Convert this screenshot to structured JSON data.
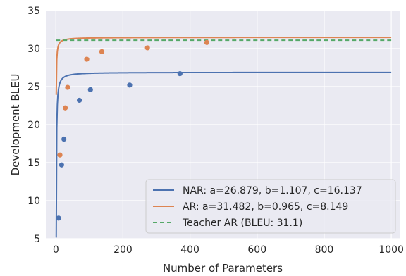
{
  "chart_data": {
    "type": "scatter",
    "xlabel": "Number of Parameters",
    "ylabel": "Development BLEU",
    "xlim": [
      -30,
      1025
    ],
    "ylim": [
      5,
      35
    ],
    "x_ticks": [
      0,
      200,
      400,
      600,
      800,
      1000
    ],
    "y_ticks": [
      5,
      10,
      15,
      20,
      25,
      30,
      35
    ],
    "grid": true,
    "legend_position": "bottom-right",
    "colors": {
      "background": "#eaeaf2",
      "grid": "#ffffff",
      "nar": "#4c72b0",
      "ar": "#dd8452",
      "teacher": "#55a868"
    },
    "series": [
      {
        "name": "NAR: a=26.879, b=1.107, c=16.137",
        "key": "nar",
        "fit": {
          "a": 26.879,
          "b": 1.107,
          "c": 16.137
        },
        "points": [
          [
            8,
            7.7
          ],
          [
            17,
            14.7
          ],
          [
            24,
            18.1
          ],
          [
            70,
            23.2
          ],
          [
            103,
            24.6
          ],
          [
            220,
            25.2
          ],
          [
            370,
            26.7
          ]
        ]
      },
      {
        "name": "AR: a=31.482, b=0.965, c=8.149",
        "key": "ar",
        "fit": {
          "a": 31.482,
          "b": 0.965,
          "c": 8.149
        },
        "points": [
          [
            12,
            16.0
          ],
          [
            28,
            22.2
          ],
          [
            35,
            24.9
          ],
          [
            92,
            28.6
          ],
          [
            137,
            29.6
          ],
          [
            273,
            30.1
          ],
          [
            450,
            30.8
          ]
        ]
      },
      {
        "name": "Teacher AR (BLEU: 31.1)",
        "key": "teacher",
        "constant": 31.1,
        "dashed": true
      }
    ]
  }
}
